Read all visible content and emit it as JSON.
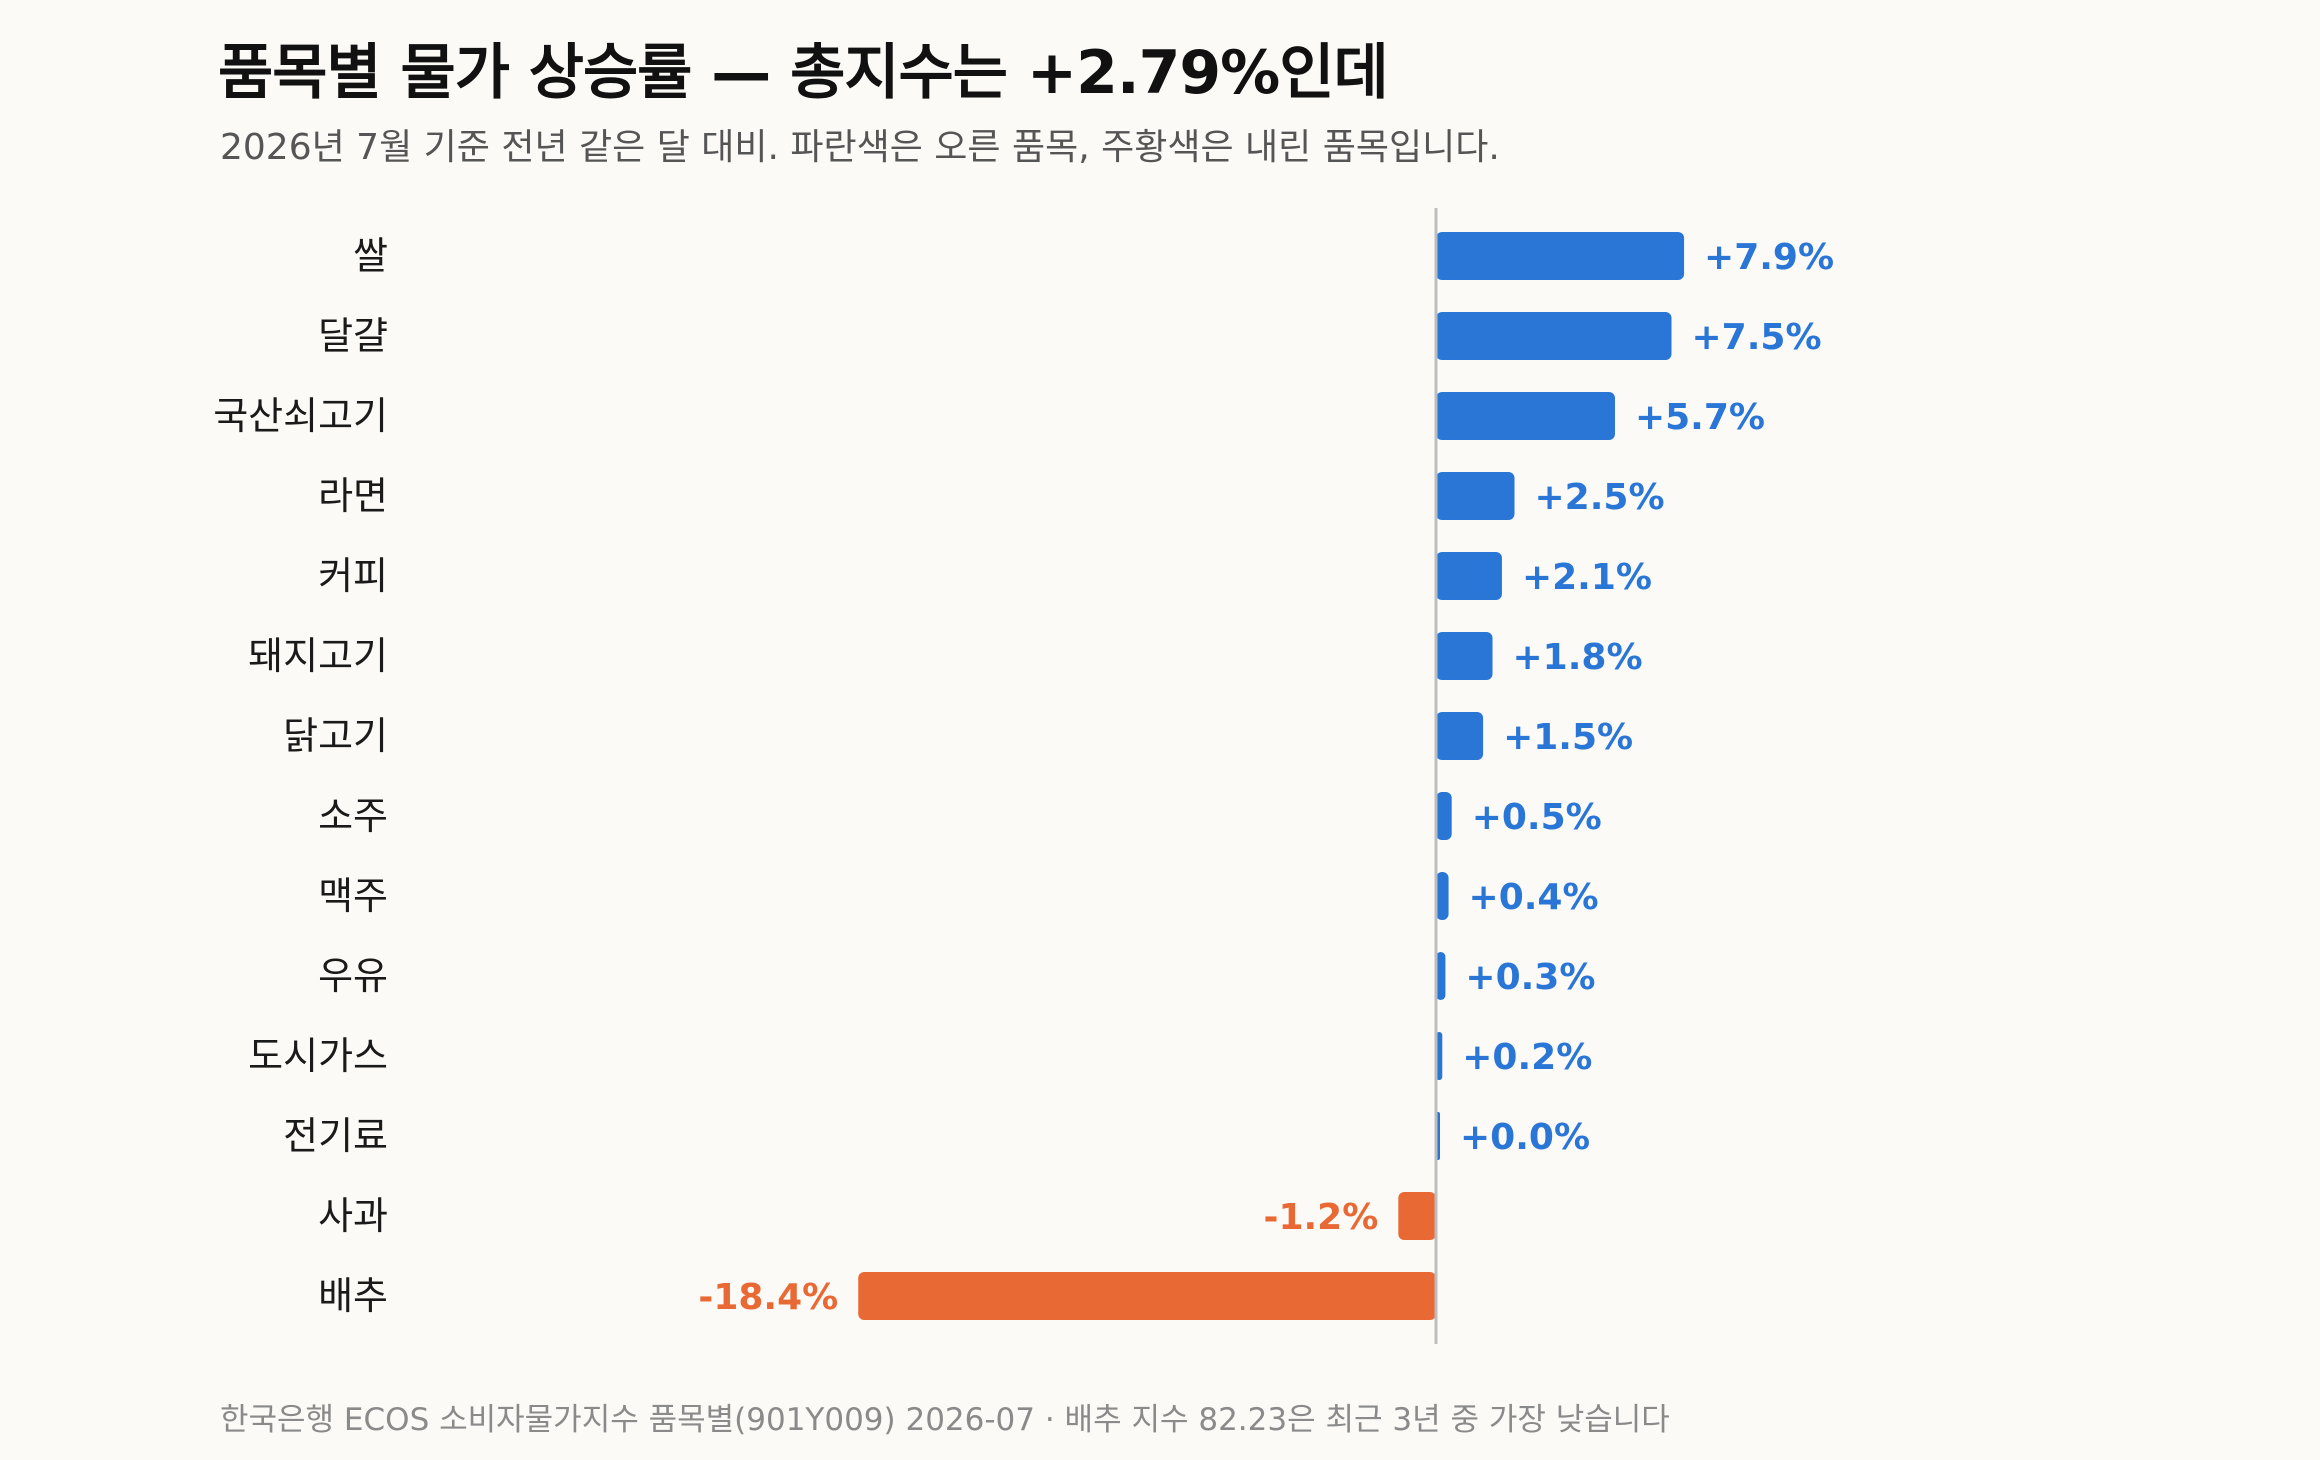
{
  "header": {
    "title": "품목별 물가 상승률 — 총지수는 +2.79%인데",
    "subtitle": "2026년 7월 기준 전년 같은 달 대비. 파란색은 오른 품목, 주황색은 내린 품목입니다."
  },
  "footer": {
    "source": "한국은행 ECOS 소비자물가지수 품목별(901Y009) 2026-07 · 배추 지수 82.23은 최근 3년 중 가장 낮습니다"
  },
  "colors": {
    "positive": "#2a76d6",
    "negative": "#e96935",
    "axis": "#bdbdbd"
  },
  "chart_data": {
    "type": "bar",
    "orientation": "horizontal",
    "categories": [
      "쌀",
      "달걀",
      "국산쇠고기",
      "라면",
      "커피",
      "돼지고기",
      "닭고기",
      "소주",
      "맥주",
      "우유",
      "도시가스",
      "전기료",
      "사과",
      "배추"
    ],
    "values": [
      7.9,
      7.5,
      5.7,
      2.5,
      2.1,
      1.8,
      1.5,
      0.5,
      0.4,
      0.3,
      0.2,
      0.0,
      -1.2,
      -18.4
    ],
    "value_labels": [
      "+7.9%",
      "+7.5%",
      "+5.7%",
      "+2.5%",
      "+2.1%",
      "+1.8%",
      "+1.5%",
      "+0.5%",
      "+0.4%",
      "+0.3%",
      "+0.2%",
      "+0.0%",
      "-1.2%",
      "-18.4%"
    ],
    "unit": "%",
    "xlim": [
      -18.4,
      7.9
    ],
    "grid": false,
    "legend": false
  }
}
